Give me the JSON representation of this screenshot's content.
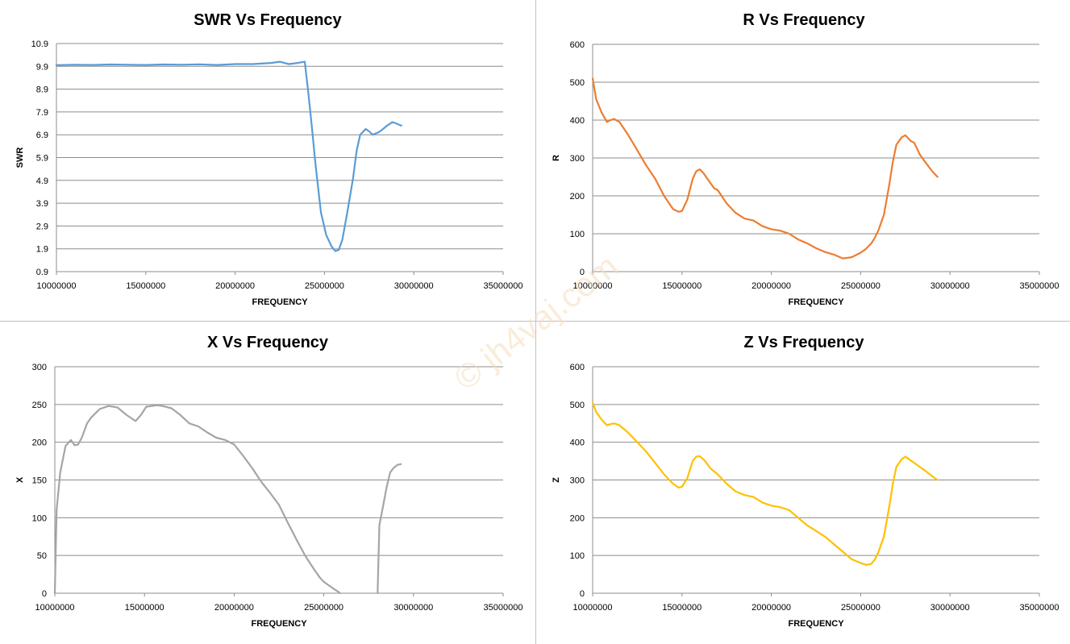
{
  "watermark": "© jh4vaj.com",
  "chart_data": [
    {
      "type": "line",
      "title": "SWR Vs Frequency",
      "xlabel": "FREQUENCY",
      "ylabel": "SWR",
      "xlim": [
        10000000,
        35000000
      ],
      "ylim": [
        0.9,
        10.9
      ],
      "xticks": [
        10000000,
        15000000,
        20000000,
        25000000,
        30000000,
        35000000
      ],
      "yticks": [
        0.9,
        1.9,
        2.9,
        3.9,
        4.9,
        5.9,
        6.9,
        7.9,
        8.9,
        9.9,
        10.9
      ],
      "ytick_decimals": 1,
      "grid": true,
      "color": "#5b9bd5",
      "series": [
        {
          "x": [
            10000000,
            11000000,
            12000000,
            13000000,
            14000000,
            15000000,
            16000000,
            17000000,
            18000000,
            19000000,
            20000000,
            21000000,
            22000000,
            22500000,
            23000000,
            23500000,
            23900000,
            24100000,
            24300000,
            24500000,
            24800000,
            25100000,
            25400000,
            25600000,
            25800000,
            26000000,
            26300000,
            26600000,
            26800000,
            27000000,
            27300000,
            27500000,
            27700000,
            28000000,
            28200000,
            28500000,
            28800000,
            29000000,
            29300000
          ],
          "y": [
            9.95,
            9.97,
            9.96,
            9.98,
            9.97,
            9.96,
            9.98,
            9.97,
            9.99,
            9.96,
            10.0,
            10.0,
            10.05,
            10.1,
            10.0,
            10.05,
            10.1,
            8.7,
            7.2,
            5.6,
            3.5,
            2.5,
            2.0,
            1.8,
            1.85,
            2.3,
            3.6,
            5.0,
            6.2,
            6.9,
            7.15,
            7.05,
            6.9,
            7.0,
            7.1,
            7.3,
            7.45,
            7.4,
            7.3
          ]
        }
      ]
    },
    {
      "type": "line",
      "title": "R Vs Frequency",
      "xlabel": "FREQUENCY",
      "ylabel": "R",
      "xlim": [
        10000000,
        35000000
      ],
      "ylim": [
        0,
        600
      ],
      "xticks": [
        10000000,
        15000000,
        20000000,
        25000000,
        30000000,
        35000000
      ],
      "yticks": [
        0,
        100,
        200,
        300,
        400,
        500,
        600
      ],
      "ytick_decimals": 0,
      "grid": true,
      "color": "#ed7d31",
      "series": [
        {
          "x": [
            10000000,
            10200000,
            10500000,
            10800000,
            11000000,
            11200000,
            11500000,
            12000000,
            12500000,
            13000000,
            13500000,
            14000000,
            14500000,
            14800000,
            15000000,
            15300000,
            15600000,
            15800000,
            16000000,
            16200000,
            16500000,
            16800000,
            17000000,
            17500000,
            18000000,
            18500000,
            19000000,
            19500000,
            20000000,
            20500000,
            21000000,
            21500000,
            22000000,
            22500000,
            23000000,
            23500000,
            24000000,
            24500000,
            25000000,
            25300000,
            25600000,
            25800000,
            26000000,
            26300000,
            26600000,
            26800000,
            27000000,
            27300000,
            27500000,
            27800000,
            28000000,
            28300000,
            28600000,
            29000000,
            29300000
          ],
          "y": [
            510,
            455,
            420,
            395,
            400,
            403,
            395,
            360,
            320,
            280,
            245,
            200,
            165,
            158,
            160,
            190,
            245,
            265,
            270,
            260,
            240,
            220,
            215,
            180,
            155,
            140,
            135,
            120,
            112,
            108,
            100,
            85,
            75,
            62,
            52,
            45,
            35,
            38,
            50,
            60,
            75,
            90,
            110,
            150,
            230,
            290,
            335,
            355,
            360,
            345,
            340,
            310,
            290,
            265,
            250
          ]
        }
      ]
    },
    {
      "type": "line",
      "title": "X Vs Frequency",
      "xlabel": "FREQUENCY",
      "ylabel": "X",
      "xlim": [
        10000000,
        35000000
      ],
      "ylim": [
        0,
        300
      ],
      "xticks": [
        10000000,
        15000000,
        20000000,
        25000000,
        30000000,
        35000000
      ],
      "yticks": [
        0,
        50,
        100,
        150,
        200,
        250,
        300
      ],
      "ytick_decimals": 0,
      "grid": true,
      "color": "#a5a5a5",
      "series": [
        {
          "x": [
            10000000,
            10100000,
            10300000,
            10600000,
            10900000,
            11100000,
            11300000,
            11500000,
            11800000,
            12000000,
            12500000,
            13000000,
            13500000,
            14000000,
            14500000,
            14800000,
            15100000,
            15400000,
            15700000,
            16000000,
            16500000,
            17000000,
            17500000,
            18000000,
            18500000,
            19000000,
            19500000,
            20000000,
            20500000,
            21000000,
            21500000,
            22000000,
            22500000,
            23000000,
            23500000,
            24000000,
            24500000,
            24800000,
            25000000,
            25300000,
            25600000,
            25800000,
            25900000
          ],
          "y": [
            0,
            110,
            160,
            195,
            203,
            196,
            197,
            206,
            225,
            232,
            244,
            248,
            246,
            236,
            228,
            236,
            247,
            248,
            249,
            248,
            245,
            236,
            225,
            221,
            213,
            206,
            203,
            197,
            182,
            166,
            148,
            133,
            117,
            93,
            70,
            48,
            30,
            20,
            15,
            10,
            5,
            2,
            0
          ]
        },
        {
          "x": [
            28000000,
            28100000,
            28300000,
            28500000,
            28700000,
            28900000,
            29100000,
            29300000
          ],
          "y": [
            0,
            90,
            115,
            140,
            160,
            166,
            170,
            171
          ]
        }
      ]
    },
    {
      "type": "line",
      "title": "Z Vs Frequency",
      "xlabel": "FREQUENCY",
      "ylabel": "Z",
      "xlim": [
        10000000,
        35000000
      ],
      "ylim": [
        0,
        600
      ],
      "xticks": [
        10000000,
        15000000,
        20000000,
        25000000,
        30000000,
        35000000
      ],
      "yticks": [
        0,
        100,
        200,
        300,
        400,
        500,
        600
      ],
      "ytick_decimals": 0,
      "grid": true,
      "color": "#ffc000",
      "series": [
        {
          "x": [
            10000000,
            10200000,
            10500000,
            10800000,
            11000000,
            11200000,
            11500000,
            12000000,
            12500000,
            13000000,
            13500000,
            14000000,
            14500000,
            14800000,
            15000000,
            15300000,
            15600000,
            15800000,
            16000000,
            16300000,
            16600000,
            17000000,
            17500000,
            18000000,
            18500000,
            19000000,
            19500000,
            20000000,
            20500000,
            21000000,
            21500000,
            22000000,
            22500000,
            23000000,
            23500000,
            24000000,
            24500000,
            25000000,
            25300000,
            25600000,
            25800000,
            26000000,
            26300000,
            26600000,
            26800000,
            27000000,
            27300000,
            27500000,
            27700000,
            28000000,
            28300000,
            28600000,
            29000000,
            29300000
          ],
          "y": [
            505,
            480,
            460,
            445,
            448,
            450,
            445,
            425,
            400,
            375,
            345,
            315,
            290,
            280,
            282,
            305,
            350,
            362,
            363,
            350,
            330,
            315,
            290,
            270,
            260,
            255,
            240,
            232,
            228,
            220,
            200,
            180,
            165,
            150,
            130,
            110,
            90,
            80,
            75,
            78,
            90,
            110,
            150,
            230,
            290,
            335,
            355,
            362,
            355,
            345,
            335,
            325,
            310,
            300
          ]
        }
      ]
    }
  ]
}
